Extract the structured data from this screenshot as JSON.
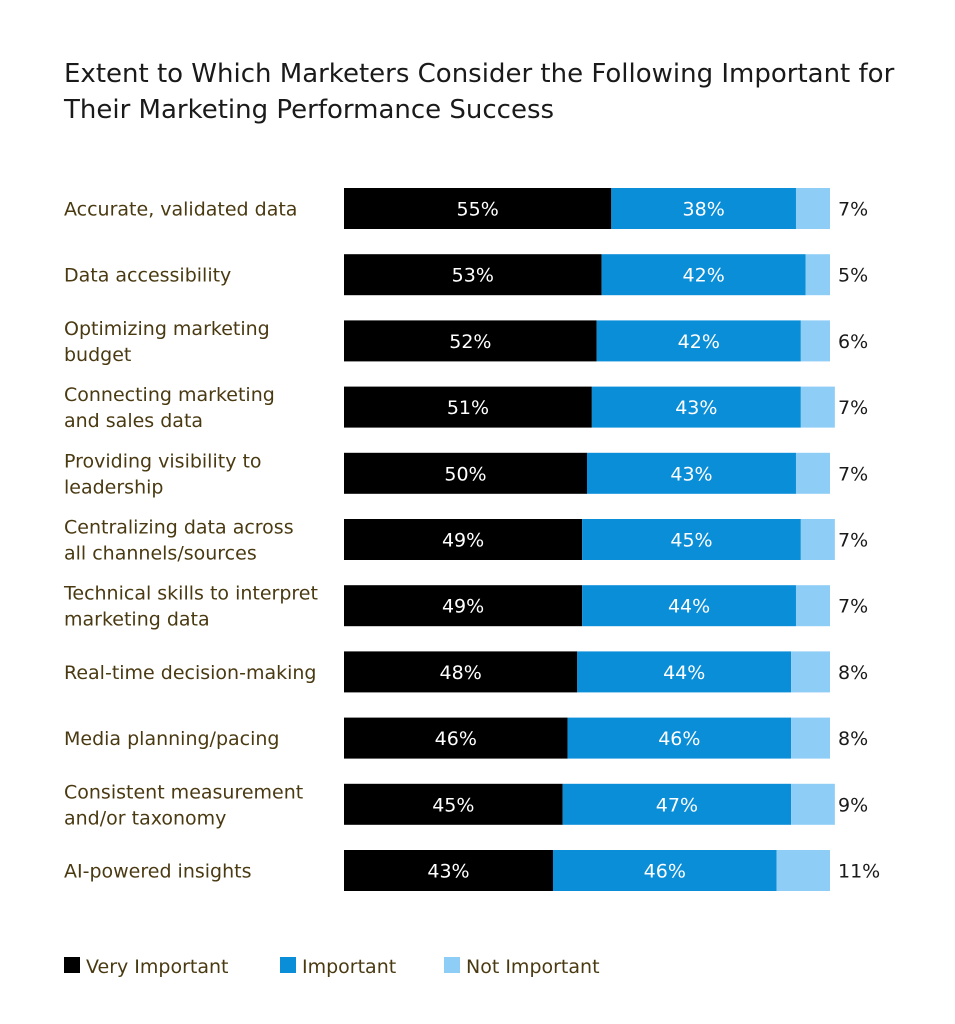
{
  "chart_data": {
    "type": "bar",
    "orientation": "horizontal",
    "stacked": true,
    "title": "Extent to Which Marketers Consider the Following Important for Their Marketing Performance Success",
    "categories": [
      [
        "Accurate, validated data"
      ],
      [
        "Data accessibility"
      ],
      [
        "Optimizing marketing",
        "budget"
      ],
      [
        "Connecting marketing",
        "and sales data"
      ],
      [
        "Providing visibility to",
        "leadership"
      ],
      [
        "Centralizing data across",
        "all channels/sources"
      ],
      [
        "Technical skills to interpret",
        "marketing data"
      ],
      [
        "Real-time decision-making"
      ],
      [
        "Media planning/pacing"
      ],
      [
        "Consistent measurement",
        "and/or taxonomy"
      ],
      [
        "AI-powered insights"
      ]
    ],
    "series": [
      {
        "name": "Very Important",
        "color": "#000000",
        "values": [
          55,
          53,
          52,
          51,
          50,
          49,
          49,
          48,
          46,
          45,
          43
        ],
        "labels": [
          "55%",
          "53%",
          "52%",
          "51%",
          "50%",
          "49%",
          "49%",
          "48%",
          "46%",
          "45%",
          "43%"
        ]
      },
      {
        "name": "Important",
        "color": "#0b8ed8",
        "values": [
          38,
          42,
          42,
          43,
          43,
          45,
          44,
          44,
          46,
          47,
          46
        ],
        "labels": [
          "38%",
          "42%",
          "42%",
          "43%",
          "43%",
          "45%",
          "44%",
          "44%",
          "46%",
          "47%",
          "46%"
        ]
      },
      {
        "name": "Not Important",
        "color": "#8ecdf6",
        "values": [
          7,
          5,
          6,
          7,
          7,
          7,
          7,
          8,
          8,
          9,
          11
        ],
        "labels": [
          "7%",
          "5%",
          "6%",
          "7%",
          "7%",
          "7%",
          "7%",
          "8%",
          "8%",
          "9%",
          "11%"
        ]
      }
    ],
    "xlim": [
      0,
      100
    ],
    "grid": false,
    "legend": "bottom-left"
  }
}
